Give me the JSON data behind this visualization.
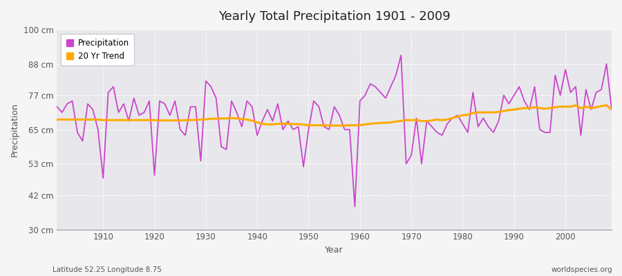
{
  "title": "Yearly Total Precipitation 1901 - 2009",
  "xlabel": "Year",
  "ylabel": "Precipitation",
  "bottom_left": "Latitude 52.25 Longitude 8.75",
  "bottom_right": "worldspecies.org",
  "ylim": [
    30,
    100
  ],
  "yticks": [
    30,
    42,
    53,
    65,
    77,
    88,
    100
  ],
  "ytick_labels": [
    "30 cm",
    "42 cm",
    "53 cm",
    "65 cm",
    "77 cm",
    "88 cm",
    "100 cm"
  ],
  "precip_color": "#cc44cc",
  "trend_color": "#ffaa00",
  "fig_bg_color": "#f5f5f5",
  "plot_bg_color": "#e8e8ec",
  "years": [
    1901,
    1902,
    1903,
    1904,
    1905,
    1906,
    1907,
    1908,
    1909,
    1910,
    1911,
    1912,
    1913,
    1914,
    1915,
    1916,
    1917,
    1918,
    1919,
    1920,
    1921,
    1922,
    1923,
    1924,
    1925,
    1926,
    1927,
    1928,
    1929,
    1930,
    1931,
    1932,
    1933,
    1934,
    1935,
    1936,
    1937,
    1938,
    1939,
    1940,
    1941,
    1942,
    1943,
    1944,
    1945,
    1946,
    1947,
    1948,
    1949,
    1950,
    1951,
    1952,
    1953,
    1954,
    1955,
    1956,
    1957,
    1958,
    1959,
    1960,
    1961,
    1962,
    1963,
    1964,
    1965,
    1966,
    1967,
    1968,
    1969,
    1970,
    1971,
    1972,
    1973,
    1974,
    1975,
    1976,
    1977,
    1978,
    1979,
    1980,
    1981,
    1982,
    1983,
    1984,
    1985,
    1986,
    1987,
    1988,
    1989,
    1990,
    1991,
    1992,
    1993,
    1994,
    1995,
    1996,
    1997,
    1998,
    1999,
    2000,
    2001,
    2002,
    2003,
    2004,
    2005,
    2006,
    2007,
    2008,
    2009
  ],
  "precipitation": [
    73,
    71,
    74,
    75,
    64,
    61,
    74,
    72,
    65,
    48,
    78,
    80,
    71,
    74,
    68,
    76,
    70,
    71,
    75,
    49,
    75,
    74,
    70,
    75,
    65,
    63,
    73,
    73,
    54,
    82,
    80,
    76,
    59,
    58,
    75,
    71,
    66,
    75,
    73,
    63,
    68,
    72,
    68,
    74,
    65,
    68,
    65,
    66,
    52,
    65,
    75,
    73,
    66,
    65,
    73,
    70,
    65,
    65,
    38,
    75,
    77,
    81,
    80,
    78,
    76,
    80,
    84,
    91,
    53,
    56,
    69,
    53,
    68,
    66,
    64,
    63,
    67,
    69,
    70,
    67,
    64,
    78,
    66,
    69,
    66,
    64,
    68,
    77,
    74,
    77,
    80,
    75,
    72,
    80,
    65,
    64,
    64,
    84,
    77,
    86,
    78,
    80,
    63,
    79,
    72,
    78,
    79,
    88,
    72
  ],
  "trend": [
    68.5,
    68.5,
    68.5,
    68.5,
    68.5,
    68.5,
    68.5,
    68.5,
    68.5,
    68.3,
    68.3,
    68.3,
    68.3,
    68.3,
    68.3,
    68.3,
    68.3,
    68.3,
    68.3,
    68.3,
    68.2,
    68.2,
    68.2,
    68.2,
    68.2,
    68.3,
    68.3,
    68.4,
    68.5,
    68.6,
    68.8,
    68.8,
    68.9,
    68.9,
    69.0,
    68.9,
    68.7,
    68.5,
    68.1,
    67.5,
    67.0,
    66.8,
    66.8,
    67.0,
    67.1,
    67.0,
    66.9,
    66.9,
    66.7,
    66.5,
    66.5,
    66.5,
    66.5,
    66.4,
    66.4,
    66.4,
    66.4,
    66.5,
    66.5,
    66.5,
    66.8,
    67.0,
    67.2,
    67.3,
    67.4,
    67.5,
    67.8,
    68.0,
    68.3,
    68.3,
    68.3,
    68.0,
    67.9,
    68.2,
    68.5,
    68.3,
    68.5,
    69.0,
    69.5,
    70.0,
    70.2,
    70.8,
    71.0,
    71.0,
    71.0,
    71.0,
    71.2,
    71.5,
    71.8,
    72.0,
    72.3,
    72.5,
    72.5,
    72.8,
    72.5,
    72.3,
    72.5,
    72.8,
    73.0,
    73.0,
    73.0,
    73.5,
    72.5,
    73.0,
    72.5,
    72.8,
    73.2,
    73.5,
    72.0
  ]
}
